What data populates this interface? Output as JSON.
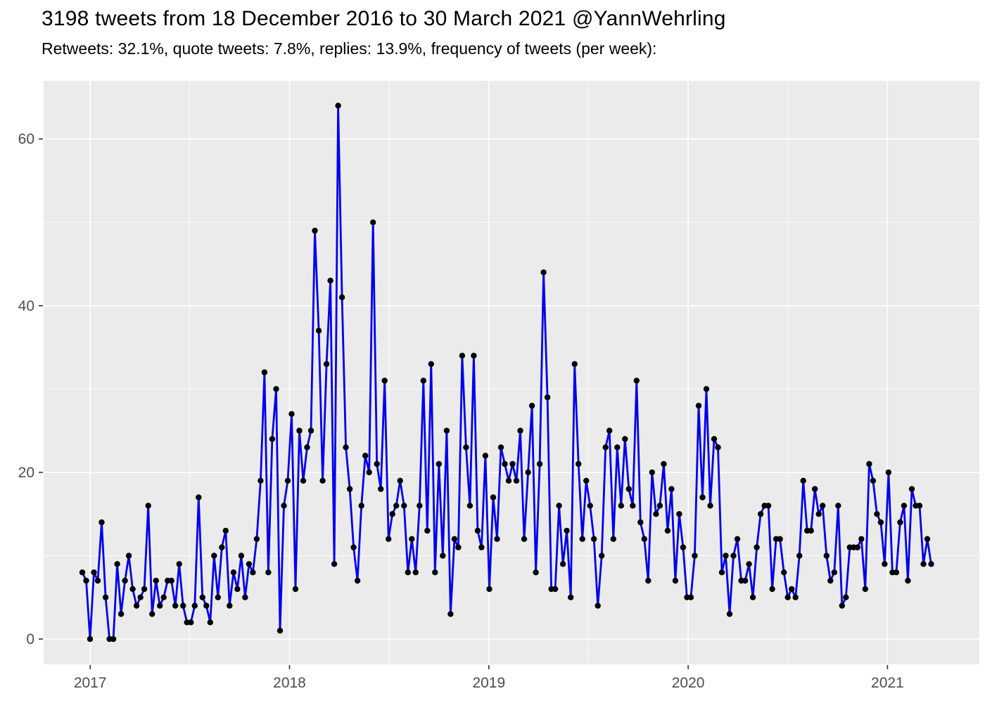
{
  "header": {
    "title": "3198 tweets from 18 December 2016 to 30 March 2021 @YannWehrling",
    "subtitle": "Retweets: 32.1%, quote tweets: 7.8%, replies: 13.9%, frequency of tweets (per week):"
  },
  "chart_data": {
    "type": "line",
    "title": "3198 tweets from 18 December 2016 to 30 March 2021 @YannWehrling",
    "subtitle": "Retweets: 32.1%, quote tweets: 7.8%, replies: 13.9%, frequency of tweets (per week):",
    "series_name": "tweets per week",
    "x_start_label": "18 December 2016",
    "x_end_label": "30 March 2021",
    "x_tick_labels": [
      "2017",
      "2018",
      "2019",
      "2020",
      "2021"
    ],
    "y_ticks": [
      0,
      20,
      40,
      60
    ],
    "y_minor_ticks": [
      10,
      30,
      50
    ],
    "ylim": [
      0,
      67
    ],
    "grid": "white major+minor gridlines on grey panel",
    "legend": "none",
    "points_per_week": 1,
    "values": [
      8,
      7,
      0,
      8,
      7,
      14,
      5,
      0,
      0,
      9,
      3,
      7,
      10,
      6,
      4,
      5,
      6,
      16,
      3,
      7,
      4,
      5,
      7,
      7,
      4,
      9,
      4,
      2,
      2,
      4,
      17,
      5,
      4,
      2,
      10,
      5,
      11,
      13,
      4,
      8,
      6,
      10,
      5,
      9,
      8,
      12,
      19,
      32,
      8,
      24,
      30,
      1,
      16,
      19,
      27,
      6,
      25,
      19,
      23,
      25,
      49,
      37,
      19,
      33,
      43,
      9,
      64,
      41,
      23,
      18,
      11,
      7,
      16,
      22,
      20,
      50,
      21,
      18,
      31,
      12,
      15,
      16,
      19,
      16,
      8,
      12,
      8,
      16,
      31,
      13,
      33,
      8,
      21,
      10,
      25,
      3,
      12,
      11,
      34,
      23,
      16,
      34,
      13,
      11,
      22,
      6,
      17,
      12,
      23,
      21,
      19,
      21,
      19,
      25,
      12,
      20,
      28,
      8,
      21,
      44,
      29,
      6,
      6,
      16,
      9,
      13,
      5,
      33,
      21,
      12,
      19,
      16,
      12,
      4,
      10,
      23,
      25,
      12,
      23,
      16,
      24,
      18,
      16,
      31,
      14,
      12,
      7,
      20,
      15,
      16,
      21,
      13,
      18,
      7,
      15,
      11,
      5,
      5,
      10,
      28,
      17,
      30,
      16,
      24,
      23,
      8,
      10,
      3,
      10,
      12,
      7,
      7,
      9,
      5,
      11,
      15,
      16,
      16,
      6,
      12,
      12,
      8,
      5,
      6,
      5,
      10,
      19,
      13,
      13,
      18,
      15,
      16,
      10,
      7,
      8,
      16,
      4,
      5,
      11,
      11,
      11,
      12,
      6,
      21,
      19,
      15,
      14,
      9,
      20,
      8,
      8,
      14,
      16,
      7,
      18,
      16,
      16,
      9,
      12,
      9
    ],
    "colors": {
      "line": "#0000EE",
      "point": "#000000",
      "panel_background": "#EBEBEB",
      "gridline": "#FFFFFF",
      "axis_text": "#4D4D4D",
      "tick_mark": "#333333",
      "title_text": "#000000",
      "page_background": "#FFFFFF"
    }
  }
}
